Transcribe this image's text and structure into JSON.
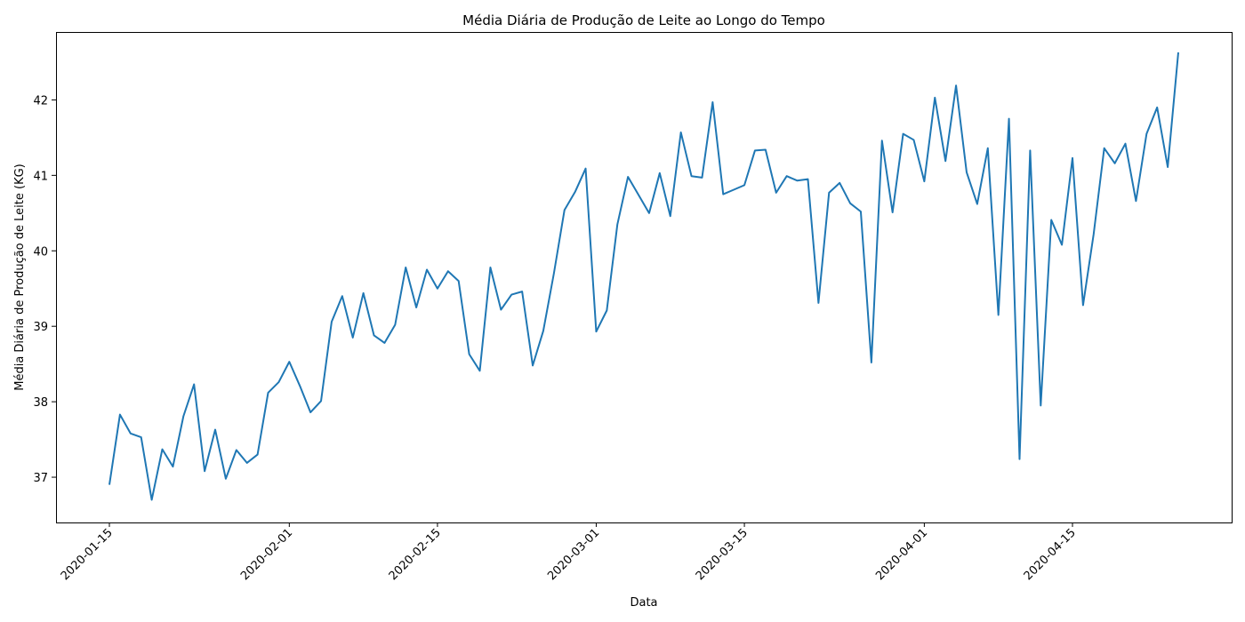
{
  "chart_data": {
    "type": "line",
    "title": "Média Diária de Produção de Leite ao Longo do Tempo",
    "xlabel": "Data",
    "ylabel": "Média Diária de Produção de Leite (KG)",
    "x_ticks": [
      "2020-01-15",
      "2020-02-01",
      "2020-02-15",
      "2020-03-01",
      "2020-03-15",
      "2020-04-01",
      "2020-04-15"
    ],
    "y_ticks": [
      37,
      38,
      39,
      40,
      41,
      42
    ],
    "ylim": [
      36.4,
      42.9
    ],
    "grid": false,
    "color": "#1f77b4",
    "start_date": "2020-01-15",
    "series": [
      {
        "values": [
          36.9,
          37.83,
          37.58,
          37.53,
          36.7,
          37.37,
          37.14,
          37.81,
          38.23,
          37.08,
          37.63,
          36.98,
          37.36,
          37.19,
          37.3,
          38.12,
          38.26,
          38.53,
          38.21,
          37.86,
          38.01,
          39.06,
          39.4,
          38.85,
          39.44,
          38.88,
          38.78,
          39.02,
          39.78,
          39.25,
          39.75,
          39.5,
          39.73,
          39.6,
          38.63,
          38.41,
          39.78,
          39.22,
          39.42,
          39.46,
          38.48,
          38.94,
          39.7,
          40.54,
          40.78,
          41.09,
          38.93,
          39.21,
          40.35,
          40.98,
          40.74,
          40.5,
          41.03,
          40.46,
          41.57,
          40.99,
          40.97,
          41.97,
          40.75,
          40.81,
          40.87,
          41.33,
          41.34,
          40.77,
          40.99,
          40.93,
          40.95,
          39.31,
          40.77,
          40.9,
          40.63,
          40.52,
          38.52,
          41.46,
          40.51,
          41.55,
          41.47,
          40.92,
          42.03,
          41.19,
          42.19,
          41.04,
          40.62,
          41.36,
          39.15,
          41.75,
          37.24,
          41.33,
          37.95,
          40.41,
          40.08,
          41.23,
          39.28,
          40.22,
          41.36,
          41.16,
          41.42,
          40.66,
          41.55,
          41.9,
          41.11,
          42.63
        ]
      }
    ]
  }
}
